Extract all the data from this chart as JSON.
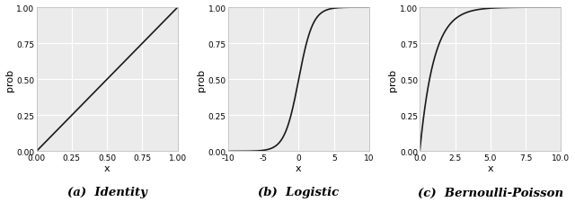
{
  "plots": [
    {
      "title": "(a)  Identity",
      "xlabel": "x",
      "ylabel": "prob",
      "xlim": [
        0.0,
        1.0
      ],
      "ylim": [
        0.0,
        1.0
      ],
      "xticks": [
        0.0,
        0.25,
        0.5,
        0.75,
        1.0
      ],
      "xtick_labels": [
        "0.00",
        "0.25",
        "0.50",
        "0.75",
        "1.00"
      ],
      "yticks": [
        0.0,
        0.25,
        0.5,
        0.75,
        1.0
      ],
      "ytick_labels": [
        "0.00",
        "0.25",
        "0.50",
        "0.75",
        "1.00"
      ],
      "func": "identity"
    },
    {
      "title": "(b)  Logistic",
      "xlabel": "x",
      "ylabel": "prob",
      "xlim": [
        -10,
        10
      ],
      "ylim": [
        0.0,
        1.0
      ],
      "xticks": [
        -10,
        -5,
        0,
        5,
        10
      ],
      "xtick_labels": [
        "-10",
        "-5",
        "0",
        "5",
        "10"
      ],
      "yticks": [
        0.0,
        0.25,
        0.5,
        0.75,
        1.0
      ],
      "ytick_labels": [
        "0.00",
        "0.25",
        "0.50",
        "0.75",
        "1.00"
      ],
      "func": "logistic"
    },
    {
      "title": "(c)  Bernoulli-Poisson",
      "xlabel": "x",
      "ylabel": "prob",
      "xlim": [
        0.0,
        10.0
      ],
      "ylim": [
        0.0,
        1.0
      ],
      "xticks": [
        0.0,
        2.5,
        5.0,
        7.5,
        10.0
      ],
      "xtick_labels": [
        "0.0",
        "2.5",
        "5.0",
        "7.5",
        "10.0"
      ],
      "yticks": [
        0.0,
        0.25,
        0.5,
        0.75,
        1.0
      ],
      "ytick_labels": [
        "0.00",
        "0.25",
        "0.50",
        "0.75",
        "1.00"
      ],
      "func": "bernoulli_poisson"
    }
  ],
  "line_color": "#1a1a1a",
  "line_width": 1.2,
  "plot_bg_color": "#ebebeb",
  "fig_bg_color": "#ffffff",
  "grid_color": "#ffffff",
  "spine_color": "#bbbbbb",
  "tick_label_fontsize": 6.5,
  "axis_label_fontsize": 8.0,
  "caption_fontsize": 9.5,
  "n_points": 500
}
